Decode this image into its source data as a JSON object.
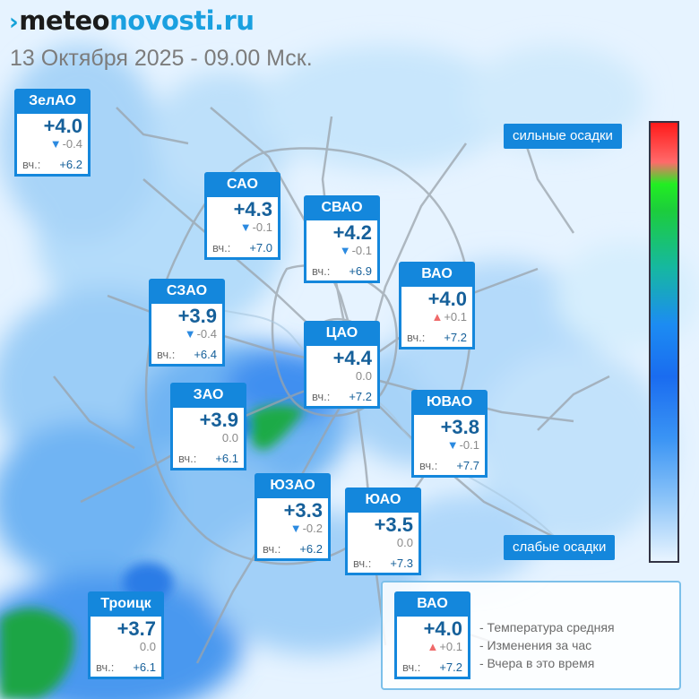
{
  "header": {
    "logo_part1": "meteo",
    "logo_part2": "novosti.ru",
    "date_line": "13 Октября 2025 - 09.00 Мск."
  },
  "cards": [
    {
      "id": "zelao",
      "name": "ЗелАО",
      "temp": "+4.0",
      "change": "-0.4",
      "trend": "down",
      "yest_label": "вч.:",
      "yest_value": "+6.2"
    },
    {
      "id": "sao",
      "name": "САО",
      "temp": "+4.3",
      "change": "-0.1",
      "trend": "down",
      "yest_label": "вч.:",
      "yest_value": "+7.0"
    },
    {
      "id": "svao",
      "name": "СВАО",
      "temp": "+4.2",
      "change": "-0.1",
      "trend": "down",
      "yest_label": "вч.:",
      "yest_value": "+6.9"
    },
    {
      "id": "vao",
      "name": "ВАО",
      "temp": "+4.0",
      "change": "+0.1",
      "trend": "up",
      "yest_label": "вч.:",
      "yest_value": "+7.2"
    },
    {
      "id": "szao",
      "name": "СЗАО",
      "temp": "+3.9",
      "change": "-0.4",
      "trend": "down",
      "yest_label": "вч.:",
      "yest_value": "+6.4"
    },
    {
      "id": "cao",
      "name": "ЦАО",
      "temp": "+4.4",
      "change": "0.0",
      "trend": "none",
      "yest_label": "вч.:",
      "yest_value": "+7.2"
    },
    {
      "id": "zao",
      "name": "ЗАО",
      "temp": "+3.9",
      "change": "0.0",
      "trend": "none",
      "yest_label": "вч.:",
      "yest_value": "+6.1"
    },
    {
      "id": "yuvao",
      "name": "ЮВАО",
      "temp": "+3.8",
      "change": "-0.1",
      "trend": "down",
      "yest_label": "вч.:",
      "yest_value": "+7.7"
    },
    {
      "id": "yuzao",
      "name": "ЮЗАО",
      "temp": "+3.3",
      "change": "-0.2",
      "trend": "down",
      "yest_label": "вч.:",
      "yest_value": "+6.2"
    },
    {
      "id": "yuao",
      "name": "ЮАО",
      "temp": "+3.5",
      "change": "0.0",
      "trend": "none",
      "yest_label": "вч.:",
      "yest_value": "+7.3"
    },
    {
      "id": "troitsk",
      "name": "Троицк",
      "temp": "+3.7",
      "change": "0.0",
      "trend": "none",
      "yest_label": "вч.:",
      "yest_value": "+6.1"
    }
  ],
  "scale": {
    "top_label": "сильные осадки",
    "bottom_label": "слабые осадки"
  },
  "legend": {
    "card": {
      "name": "ВАО",
      "temp": "+4.0",
      "change": "+0.1",
      "trend": "up",
      "yest_label": "вч.:",
      "yest_value": "+7.2"
    },
    "line1": "- Температура средняя",
    "line2": "- Изменения за час",
    "line3": "- Вчера в это время"
  },
  "colors": {
    "card_header": "#1487dc",
    "temp_text": "#16609a",
    "down_arrow": "#2c8ae0",
    "up_arrow": "#ef6a6a",
    "precip_light": "#8cc4f8",
    "precip_medium": "#1a6cf0",
    "precip_heavy_green": "#1ccd3c",
    "precip_max_red": "#ff1a1a"
  }
}
